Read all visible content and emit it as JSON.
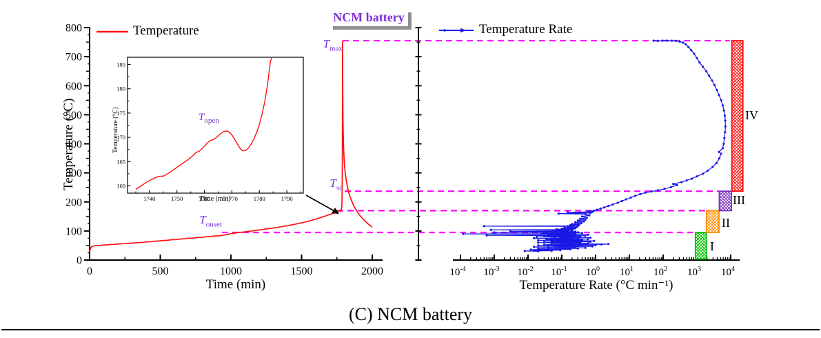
{
  "page": {
    "badge": "NCM battery",
    "caption": "(C) NCM battery"
  },
  "chart_data": [
    {
      "type": "line",
      "panel": "temperature-vs-time",
      "legend": "Temperature",
      "xlabel": "Time (min)",
      "ylabel": "Temperature (°C)",
      "xlim": [
        0,
        2070
      ],
      "ylim": [
        0,
        800
      ],
      "x_ticks": [
        0,
        500,
        1000,
        1500,
        2000
      ],
      "y_ticks": [
        0,
        100,
        200,
        300,
        400,
        500,
        600,
        700,
        800
      ],
      "line_color": "#FF1010",
      "guide_color": "#FF00FF",
      "guide_values": [
        755,
        237,
        170,
        95
      ],
      "annotations": {
        "tmax": {
          "t": "T",
          "sub": "max",
          "value": 755
        },
        "tsc": {
          "t": "T",
          "sub": "sc",
          "value": 237
        },
        "topen": {
          "t": "T",
          "sub": "open",
          "value": 170
        },
        "tonset": {
          "t": "T",
          "sub": "onset",
          "value": 95
        }
      },
      "series": [
        [
          0,
          30
        ],
        [
          4,
          36
        ],
        [
          8,
          42
        ],
        [
          15,
          46
        ],
        [
          25,
          48
        ],
        [
          50,
          50
        ],
        [
          80,
          50.5
        ],
        [
          100,
          52
        ],
        [
          130,
          52.5
        ],
        [
          160,
          54
        ],
        [
          190,
          54.5
        ],
        [
          220,
          56
        ],
        [
          250,
          56.5
        ],
        [
          280,
          58
        ],
        [
          310,
          58.5
        ],
        [
          340,
          60
        ],
        [
          370,
          60.5
        ],
        [
          400,
          62.5
        ],
        [
          430,
          63
        ],
        [
          460,
          65
        ],
        [
          490,
          65.5
        ],
        [
          520,
          67.5
        ],
        [
          550,
          68
        ],
        [
          580,
          70
        ],
        [
          610,
          70.5
        ],
        [
          640,
          72.5
        ],
        [
          670,
          73
        ],
        [
          700,
          75
        ],
        [
          730,
          75.5
        ],
        [
          760,
          77.5
        ],
        [
          790,
          78
        ],
        [
          820,
          80
        ],
        [
          850,
          80.5
        ],
        [
          880,
          82.5
        ],
        [
          910,
          83
        ],
        [
          940,
          85
        ],
        [
          960,
          87
        ],
        [
          980,
          89
        ],
        [
          1000,
          91
        ],
        [
          1020,
          92
        ],
        [
          1040,
          94
        ],
        [
          1060,
          95
        ],
        [
          1080,
          96
        ],
        [
          1100,
          97
        ],
        [
          1130,
          99
        ],
        [
          1160,
          101
        ],
        [
          1190,
          103
        ],
        [
          1220,
          105
        ],
        [
          1250,
          107
        ],
        [
          1280,
          109
        ],
        [
          1310,
          111
        ],
        [
          1340,
          113
        ],
        [
          1370,
          116
        ],
        [
          1400,
          118
        ],
        [
          1430,
          121
        ],
        [
          1460,
          124
        ],
        [
          1490,
          127
        ],
        [
          1520,
          130
        ],
        [
          1550,
          134
        ],
        [
          1580,
          138
        ],
        [
          1610,
          142
        ],
        [
          1640,
          147
        ],
        [
          1670,
          152
        ],
        [
          1700,
          157
        ],
        [
          1720,
          160
        ],
        [
          1740,
          163
        ],
        [
          1755,
          166
        ],
        [
          1765,
          169
        ],
        [
          1768,
          171
        ],
        [
          1772,
          168.5
        ],
        [
          1775,
          167.3
        ],
        [
          1778,
          169
        ],
        [
          1781,
          173
        ],
        [
          1783,
          178
        ],
        [
          1785,
          188
        ],
        [
          1786,
          205
        ],
        [
          1787,
          235
        ],
        [
          1788,
          300
        ],
        [
          1789,
          420
        ],
        [
          1789.5,
          560
        ],
        [
          1790,
          755
        ],
        [
          1790.5,
          700
        ],
        [
          1791,
          620
        ],
        [
          1792,
          540
        ],
        [
          1793,
          480
        ],
        [
          1795,
          430
        ],
        [
          1797,
          390
        ],
        [
          1800,
          355
        ],
        [
          1804,
          325
        ],
        [
          1809,
          300
        ],
        [
          1815,
          278
        ],
        [
          1822,
          258
        ],
        [
          1830,
          240
        ],
        [
          1840,
          222
        ],
        [
          1852,
          206
        ],
        [
          1865,
          191
        ],
        [
          1880,
          177
        ],
        [
          1896,
          164
        ],
        [
          1913,
          153
        ],
        [
          1932,
          143
        ],
        [
          1952,
          133
        ],
        [
          1972,
          124
        ],
        [
          2000,
          113
        ]
      ],
      "inset": {
        "xlabel": "Time (min)",
        "ylabel": "Temperature (°C)",
        "xlim": [
          1732,
          1796
        ],
        "ylim": [
          158.5,
          186.5
        ],
        "x_ticks": [
          1740,
          1750,
          1760,
          1770,
          1780,
          1790
        ],
        "y_ticks": [
          160,
          165,
          170,
          175,
          180,
          185
        ],
        "series": [
          [
            1735,
            159.3
          ],
          [
            1737,
            160
          ],
          [
            1739,
            160.8
          ],
          [
            1741,
            161.4
          ],
          [
            1743,
            161.9
          ],
          [
            1744,
            162
          ],
          [
            1745,
            162
          ],
          [
            1746,
            162.3
          ],
          [
            1748,
            163
          ],
          [
            1750,
            163.8
          ],
          [
            1752,
            164.6
          ],
          [
            1754,
            165.4
          ],
          [
            1756,
            166.3
          ],
          [
            1757,
            166.9
          ],
          [
            1758,
            167.1
          ],
          [
            1759,
            167.6
          ],
          [
            1760,
            168.2
          ],
          [
            1761,
            168.8
          ],
          [
            1762,
            169.3
          ],
          [
            1763,
            169.5
          ],
          [
            1764,
            169.8
          ],
          [
            1765,
            170.3
          ],
          [
            1766,
            170.8
          ],
          [
            1767,
            171.2
          ],
          [
            1768,
            171.3
          ],
          [
            1769,
            171.1
          ],
          [
            1770,
            170.5
          ],
          [
            1771,
            169.6
          ],
          [
            1772,
            168.6
          ],
          [
            1773,
            167.7
          ],
          [
            1774,
            167.2
          ],
          [
            1775,
            167.3
          ],
          [
            1776,
            167.8
          ],
          [
            1777,
            168.6
          ],
          [
            1778,
            169.7
          ],
          [
            1779,
            171
          ],
          [
            1780,
            172.7
          ],
          [
            1781,
            174.8
          ],
          [
            1782,
            177.4
          ],
          [
            1783,
            181
          ],
          [
            1784,
            185.5
          ],
          [
            1784.5,
            186.5
          ]
        ]
      }
    },
    {
      "type": "line",
      "panel": "rate-vs-temperature",
      "legend": "Temperature Rate",
      "xlabel": "Temperature Rate (°C min⁻¹)",
      "x_scale": "log",
      "x_tick_exponents": [
        -4,
        -3,
        -2,
        -1,
        0,
        1,
        2,
        3,
        4
      ],
      "ylim": [
        0,
        800
      ],
      "line_color": "#1818E6",
      "regions": [
        {
          "label": "I",
          "rate": [
            900,
            1900
          ],
          "temp": [
            0,
            95
          ],
          "color": "#00BE00"
        },
        {
          "label": "II",
          "rate": [
            1930,
            4500
          ],
          "temp": [
            95,
            170
          ],
          "color": "#FF8C00"
        },
        {
          "label": "III",
          "rate": [
            4600,
            10500
          ],
          "temp": [
            170,
            237
          ],
          "color": "#7A2FC0"
        },
        {
          "label": "IV",
          "rate": [
            10800,
            23000
          ],
          "temp": [
            237,
            755
          ],
          "color": "#FF1111"
        }
      ],
      "series": [
        [
          0.02,
          30
        ],
        [
          0.008,
          31
        ],
        [
          0.05,
          32
        ],
        [
          0.015,
          33
        ],
        [
          0.09,
          34
        ],
        [
          0.03,
          35
        ],
        [
          0.012,
          36
        ],
        [
          0.18,
          37
        ],
        [
          0.05,
          38
        ],
        [
          0.02,
          39
        ],
        [
          0.3,
          40
        ],
        [
          0.09,
          41
        ],
        [
          0.5,
          42
        ],
        [
          0.12,
          43
        ],
        [
          0.04,
          44
        ],
        [
          0.015,
          45
        ],
        [
          0.25,
          45.5
        ],
        [
          0.07,
          46
        ],
        [
          0.8,
          47
        ],
        [
          0.2,
          48
        ],
        [
          0.06,
          49
        ],
        [
          0.02,
          50
        ],
        [
          1.0,
          51
        ],
        [
          0.3,
          52
        ],
        [
          0.1,
          52.5
        ],
        [
          0.03,
          53
        ],
        [
          1.5,
          54
        ],
        [
          2.4,
          55
        ],
        [
          0.5,
          55.5
        ],
        [
          0.15,
          56
        ],
        [
          0.05,
          57
        ],
        [
          0.6,
          57.5
        ],
        [
          0.2,
          58
        ],
        [
          0.06,
          59
        ],
        [
          0.02,
          60
        ],
        [
          0.35,
          60.5
        ],
        [
          0.1,
          61
        ],
        [
          0.03,
          62
        ],
        [
          0.7,
          63
        ],
        [
          0.2,
          64
        ],
        [
          0.05,
          65
        ],
        [
          0.9,
          66
        ],
        [
          0.25,
          67
        ],
        [
          0.07,
          67.5
        ],
        [
          0.02,
          68
        ],
        [
          0.4,
          69
        ],
        [
          0.12,
          70
        ],
        [
          0.035,
          71
        ],
        [
          0.6,
          72
        ],
        [
          0.18,
          73
        ],
        [
          0.05,
          74
        ],
        [
          0.015,
          75
        ],
        [
          0.3,
          75.5
        ],
        [
          0.09,
          76
        ],
        [
          0.7,
          77
        ],
        [
          0.2,
          78
        ],
        [
          0.06,
          79
        ],
        [
          0.018,
          80
        ],
        [
          0.35,
          81
        ],
        [
          0.1,
          82
        ],
        [
          0.03,
          83
        ],
        [
          0.5,
          84
        ],
        [
          0.0006,
          85
        ],
        [
          0.15,
          85.5
        ],
        [
          0.04,
          86
        ],
        [
          0.6,
          87
        ],
        [
          0.18,
          88
        ],
        [
          0.05,
          89
        ],
        [
          0.00012,
          90
        ],
        [
          0.25,
          90.5
        ],
        [
          0.08,
          91
        ],
        [
          0.025,
          92
        ],
        [
          0.4,
          93
        ],
        [
          0.12,
          94
        ],
        [
          0.001,
          95
        ],
        [
          0.3,
          95.5
        ],
        [
          0.1,
          96
        ],
        [
          0.05,
          97
        ],
        [
          0.25,
          98
        ],
        [
          0.003,
          99
        ],
        [
          0.15,
          100
        ],
        [
          0.06,
          101
        ],
        [
          0.2,
          102
        ],
        [
          0.08,
          103
        ],
        [
          0.0008,
          104
        ],
        [
          0.18,
          105
        ],
        [
          0.07,
          106
        ],
        [
          0.22,
          107
        ],
        [
          0.1,
          108
        ],
        [
          0.25,
          110
        ],
        [
          0.12,
          112
        ],
        [
          0.28,
          114
        ],
        [
          0.15,
          116
        ],
        [
          0.0005,
          116.5
        ],
        [
          0.3,
          118
        ],
        [
          0.18,
          120
        ],
        [
          0.33,
          122
        ],
        [
          0.2,
          124
        ],
        [
          0.38,
          127
        ],
        [
          0.25,
          130
        ],
        [
          0.45,
          133
        ],
        [
          0.3,
          136
        ],
        [
          0.5,
          139
        ],
        [
          0.35,
          142
        ],
        [
          0.55,
          146
        ],
        [
          0.4,
          150
        ],
        [
          0.65,
          154
        ],
        [
          0.5,
          158
        ],
        [
          0.08,
          160
        ],
        [
          0.7,
          162
        ],
        [
          0.15,
          164
        ],
        [
          0.8,
          166
        ],
        [
          0.6,
          168
        ],
        [
          0.9,
          170
        ],
        [
          1.1,
          173
        ],
        [
          1.4,
          177
        ],
        [
          1.8,
          181
        ],
        [
          2.4,
          186
        ],
        [
          3.2,
          191
        ],
        [
          4.5,
          197
        ],
        [
          6,
          203
        ],
        [
          8,
          209
        ],
        [
          11,
          215
        ],
        [
          15,
          221
        ],
        [
          21,
          227
        ],
        [
          30,
          232
        ],
        [
          45,
          236
        ],
        [
          70,
          240
        ],
        [
          110,
          245
        ],
        [
          170,
          251
        ],
        [
          260,
          258
        ],
        [
          200,
          262
        ],
        [
          350,
          268
        ],
        [
          500,
          274
        ],
        [
          700,
          280
        ],
        [
          1000,
          288
        ],
        [
          1500,
          297
        ],
        [
          2100,
          308
        ],
        [
          2900,
          320
        ],
        [
          3800,
          334
        ],
        [
          4600,
          350
        ],
        [
          5200,
          366
        ],
        [
          4500,
          372
        ],
        [
          5800,
          385
        ],
        [
          6200,
          400
        ],
        [
          6500,
          420
        ],
        [
          6800,
          440
        ],
        [
          7000,
          460
        ],
        [
          6900,
          480
        ],
        [
          6700,
          497
        ],
        [
          6300,
          515
        ],
        [
          5800,
          532
        ],
        [
          5200,
          550
        ],
        [
          4500,
          568
        ],
        [
          3900,
          585
        ],
        [
          3300,
          602
        ],
        [
          2800,
          618
        ],
        [
          2300,
          634
        ],
        [
          1900,
          650
        ],
        [
          1500,
          665
        ],
        [
          1200,
          680
        ],
        [
          1000,
          695
        ],
        [
          820,
          710
        ],
        [
          680,
          722
        ],
        [
          560,
          733
        ],
        [
          470,
          742
        ],
        [
          390,
          748
        ],
        [
          310,
          752
        ],
        [
          240,
          754
        ],
        [
          180,
          755
        ],
        [
          130,
          755
        ],
        [
          95,
          755
        ],
        [
          70,
          754
        ],
        [
          52,
          755
        ]
      ]
    }
  ]
}
